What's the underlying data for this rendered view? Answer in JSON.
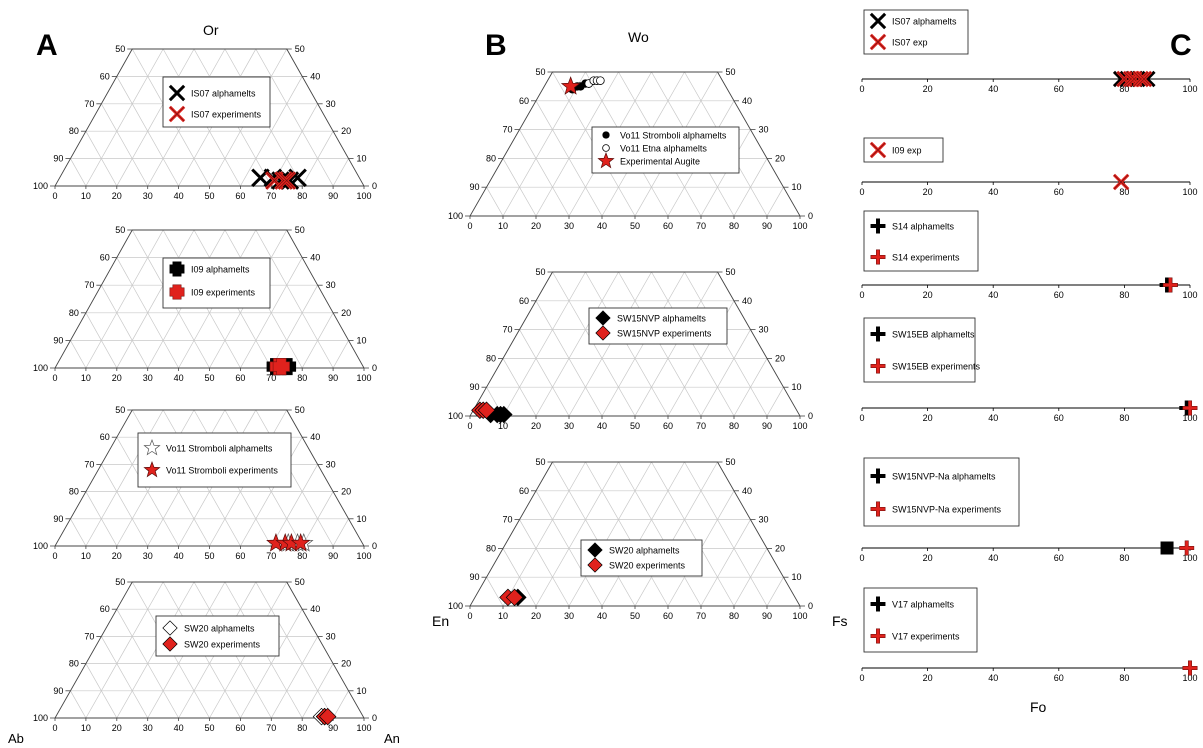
{
  "panels": {
    "A": "A",
    "B": "B",
    "C": "C"
  },
  "apex_labels": {
    "or": "Or",
    "ab": "Ab",
    "an": "An",
    "wo": "Wo",
    "en": "En",
    "fs": "Fs",
    "fo": "Fo"
  },
  "colors": {
    "grid": "#c8c8c8",
    "red": "#e0221d",
    "black": "#000000"
  },
  "chart_data": [
    {
      "type": "scatter",
      "subtype": "ternary-truncated",
      "panel": "A",
      "apices": [
        "Ab",
        "An",
        "Or"
      ],
      "max_or": 50,
      "bottom_ticks": [
        0,
        10,
        20,
        30,
        40,
        50,
        60,
        70,
        80,
        90,
        100
      ],
      "left_ticks": [
        100,
        90,
        80,
        70,
        60,
        50
      ],
      "right_ticks": [
        0,
        10,
        20,
        30,
        40,
        50
      ],
      "grid": true,
      "legend_position": "center",
      "series": [
        {
          "name": "IS07 alphamelts",
          "marker": "x",
          "color": "#000000",
          "points": [
            [
              65,
              3
            ],
            [
              69,
              3
            ],
            [
              72,
              2
            ],
            [
              75,
              2
            ],
            [
              77,
              3
            ]
          ]
        },
        {
          "name": "IS07 experiments",
          "marker": "x",
          "color": "#e0221d",
          "points": [
            [
              70,
              2
            ],
            [
              73,
              2
            ],
            [
              74,
              2
            ]
          ]
        }
      ]
    },
    {
      "type": "scatter",
      "subtype": "ternary-truncated",
      "panel": "A",
      "max_or": 50,
      "bottom_ticks": [
        0,
        10,
        20,
        30,
        40,
        50,
        60,
        70,
        80,
        90,
        100
      ],
      "left_ticks": [
        100,
        90,
        80,
        70,
        60,
        50
      ],
      "right_ticks": [
        0,
        10,
        20,
        30,
        40,
        50
      ],
      "grid": true,
      "legend_position": "center",
      "series": [
        {
          "name": "I09 alphamelts",
          "marker": "plus-bold",
          "color": "#000000",
          "points": [
            [
              71,
              0.5
            ],
            [
              73,
              0.5
            ],
            [
              75,
              0.5
            ]
          ]
        },
        {
          "name": "I09 experiments",
          "marker": "plus-bold",
          "color": "#e0221d",
          "points": [
            [
              72,
              0.5
            ],
            [
              73,
              0.5
            ]
          ]
        }
      ]
    },
    {
      "type": "scatter",
      "subtype": "ternary-truncated",
      "panel": "A",
      "max_or": 50,
      "bottom_ticks": [
        0,
        10,
        20,
        30,
        40,
        50,
        60,
        70,
        80,
        90,
        100
      ],
      "left_ticks": [
        100,
        90,
        80,
        70,
        60,
        50
      ],
      "right_ticks": [
        0,
        10,
        20,
        30,
        40,
        50
      ],
      "grid": true,
      "legend_position": "center",
      "series": [
        {
          "name": "Vo11 Stromboli alphamelts",
          "marker": "star-open",
          "color": "#ffffff",
          "points": [
            [
              75,
              1
            ],
            [
              78,
              1
            ],
            [
              80,
              1
            ]
          ]
        },
        {
          "name": "Vo11 Stromboli  experiments",
          "marker": "star",
          "color": "#e0221d",
          "points": [
            [
              71,
              1
            ],
            [
              74,
              1
            ],
            [
              76,
              1
            ],
            [
              79,
              1
            ]
          ]
        }
      ]
    },
    {
      "type": "scatter",
      "subtype": "ternary-truncated",
      "panel": "A",
      "max_or": 50,
      "bottom_ticks": [
        0,
        10,
        20,
        30,
        40,
        50,
        60,
        70,
        80,
        90,
        100
      ],
      "left_ticks": [
        100,
        90,
        80,
        70,
        60,
        50
      ],
      "right_ticks": [
        0,
        10,
        20,
        30,
        40,
        50
      ],
      "grid": true,
      "legend_position": "center",
      "series": [
        {
          "name": "SW20 alphamelts",
          "marker": "diamond-open",
          "color": "#ffffff",
          "points": [
            [
              86,
              0.5
            ],
            [
              87,
              0.5
            ]
          ]
        },
        {
          "name": "SW20  experiments",
          "marker": "diamond",
          "color": "#e0221d",
          "points": [
            [
              87,
              0.5
            ],
            [
              88,
              0.5
            ]
          ]
        }
      ]
    },
    {
      "type": "scatter",
      "subtype": "ternary-truncated",
      "panel": "B",
      "apices": [
        "En",
        "Fs",
        "Wo"
      ],
      "max_wo": 50,
      "bottom_ticks": [
        0,
        10,
        20,
        30,
        40,
        50,
        60,
        70,
        80,
        90,
        100
      ],
      "left_ticks": [
        100,
        90,
        80,
        70,
        60,
        50
      ],
      "right_ticks": [
        0,
        10,
        20,
        30,
        40,
        50
      ],
      "grid": true,
      "legend_position": "center",
      "series": [
        {
          "name": "Vo11 Stromboli alphamelts",
          "marker": "dot",
          "color": "#000000",
          "points": [
            [
              9,
              44
            ],
            [
              10,
              45
            ],
            [
              11,
              45
            ],
            [
              12,
              46
            ],
            [
              13,
              46
            ]
          ]
        },
        {
          "name": "Vo11 Etna alphamelts",
          "marker": "circle-open",
          "color": "#ffffff",
          "points": [
            [
              13,
              46
            ],
            [
              14,
              47
            ],
            [
              15,
              47
            ],
            [
              16,
              47
            ]
          ]
        },
        {
          "name": "Experimental Augite",
          "marker": "star",
          "color": "#e0221d",
          "points": [
            [
              8,
              45
            ]
          ]
        }
      ]
    },
    {
      "type": "scatter",
      "subtype": "ternary-truncated",
      "panel": "B",
      "max_wo": 50,
      "bottom_ticks": [
        0,
        10,
        20,
        30,
        40,
        50,
        60,
        70,
        80,
        90,
        100
      ],
      "left_ticks": [
        100,
        90,
        80,
        70,
        60,
        50
      ],
      "right_ticks": [
        0,
        10,
        20,
        30,
        40,
        50
      ],
      "grid": true,
      "legend_position": "center",
      "series": [
        {
          "name": "SW15NVP alphamelts",
          "marker": "diamond",
          "color": "#000000",
          "points": [
            [
              6,
              0.5
            ],
            [
              8,
              0.5
            ],
            [
              9,
              0.5
            ],
            [
              10,
              0.5
            ]
          ]
        },
        {
          "name": "SW15NVP experiments",
          "marker": "diamond",
          "color": "#e0221d",
          "points": [
            [
              2,
              2
            ],
            [
              3,
              2
            ],
            [
              4,
              2
            ]
          ]
        }
      ]
    },
    {
      "type": "scatter",
      "subtype": "ternary-truncated",
      "panel": "B",
      "max_wo": 50,
      "bottom_ticks": [
        0,
        10,
        20,
        30,
        40,
        50,
        60,
        70,
        80,
        90,
        100
      ],
      "left_ticks": [
        100,
        90,
        80,
        70,
        60,
        50
      ],
      "right_ticks": [
        0,
        10,
        20,
        30,
        40,
        50
      ],
      "grid": true,
      "legend_position": "center",
      "series": [
        {
          "name": "SW20 alphamelts",
          "marker": "diamond",
          "color": "#000000",
          "points": [
            [
              13,
              3
            ]
          ]
        },
        {
          "name": "SW20 experiments",
          "marker": "diamond",
          "color": "#e0221d",
          "points": [
            [
              10,
              3
            ],
            [
              12,
              3
            ]
          ]
        }
      ]
    },
    {
      "type": "scatter",
      "subtype": "strip",
      "panel": "C",
      "xlim": [
        0,
        100
      ],
      "x_ticks": [
        0,
        20,
        40,
        60,
        80,
        100
      ],
      "series": [
        {
          "name": "IS07 alphamelts",
          "marker": "x",
          "color": "#000000",
          "x": [
            79,
            81,
            84,
            87
          ]
        },
        {
          "name": "IS07 exp",
          "marker": "x",
          "color": "#e0221d",
          "x": [
            80,
            82,
            83,
            85,
            86
          ]
        }
      ]
    },
    {
      "type": "scatter",
      "subtype": "strip",
      "panel": "C",
      "xlim": [
        0,
        100
      ],
      "x_ticks": [
        0,
        20,
        40,
        60,
        80,
        100
      ],
      "series": [
        {
          "name": "I09 exp",
          "marker": "x",
          "color": "#e0221d",
          "x": [
            79
          ]
        }
      ]
    },
    {
      "type": "scatter",
      "subtype": "strip",
      "panel": "C",
      "xlim": [
        0,
        100
      ],
      "x_ticks": [
        0,
        20,
        40,
        60,
        80,
        100
      ],
      "series": [
        {
          "name": "S14 alphamelts",
          "marker": "plus",
          "color": "#000000",
          "x": [
            93,
            94
          ]
        },
        {
          "name": "S14 experiments",
          "marker": "plus",
          "color": "#e0221d",
          "x": [
            94
          ]
        }
      ]
    },
    {
      "type": "scatter",
      "subtype": "strip",
      "panel": "C",
      "xlim": [
        0,
        100
      ],
      "x_ticks": [
        0,
        20,
        40,
        60,
        80,
        100
      ],
      "series": [
        {
          "name": "SW15EB alphamelts",
          "marker": "plus",
          "color": "#000000",
          "x": [
            99
          ]
        },
        {
          "name": "SW15EB  experiments",
          "marker": "plus",
          "color": "#e0221d",
          "x": [
            100
          ]
        }
      ]
    },
    {
      "type": "scatter",
      "subtype": "strip",
      "panel": "C",
      "xlim": [
        0,
        100
      ],
      "x_ticks": [
        0,
        20,
        40,
        60,
        80,
        100
      ],
      "series": [
        {
          "name": "SW15NVP-Na alphamelts",
          "marker": "plus",
          "color": "#000000",
          "x": [
            93
          ]
        },
        {
          "name": "SW15NVP-Na  experiments",
          "marker": "plus",
          "color": "#e0221d",
          "x": [
            99
          ]
        }
      ]
    },
    {
      "type": "scatter",
      "subtype": "strip",
      "panel": "C",
      "xlim": [
        0,
        100
      ],
      "x_ticks": [
        0,
        20,
        40,
        60,
        80,
        100
      ],
      "series": [
        {
          "name": "V17 alphamelts",
          "marker": "plus",
          "color": "#000000",
          "x": [
            100
          ]
        },
        {
          "name": "V17  experiments",
          "marker": "plus",
          "color": "#e0221d",
          "x": [
            100
          ]
        }
      ]
    }
  ]
}
